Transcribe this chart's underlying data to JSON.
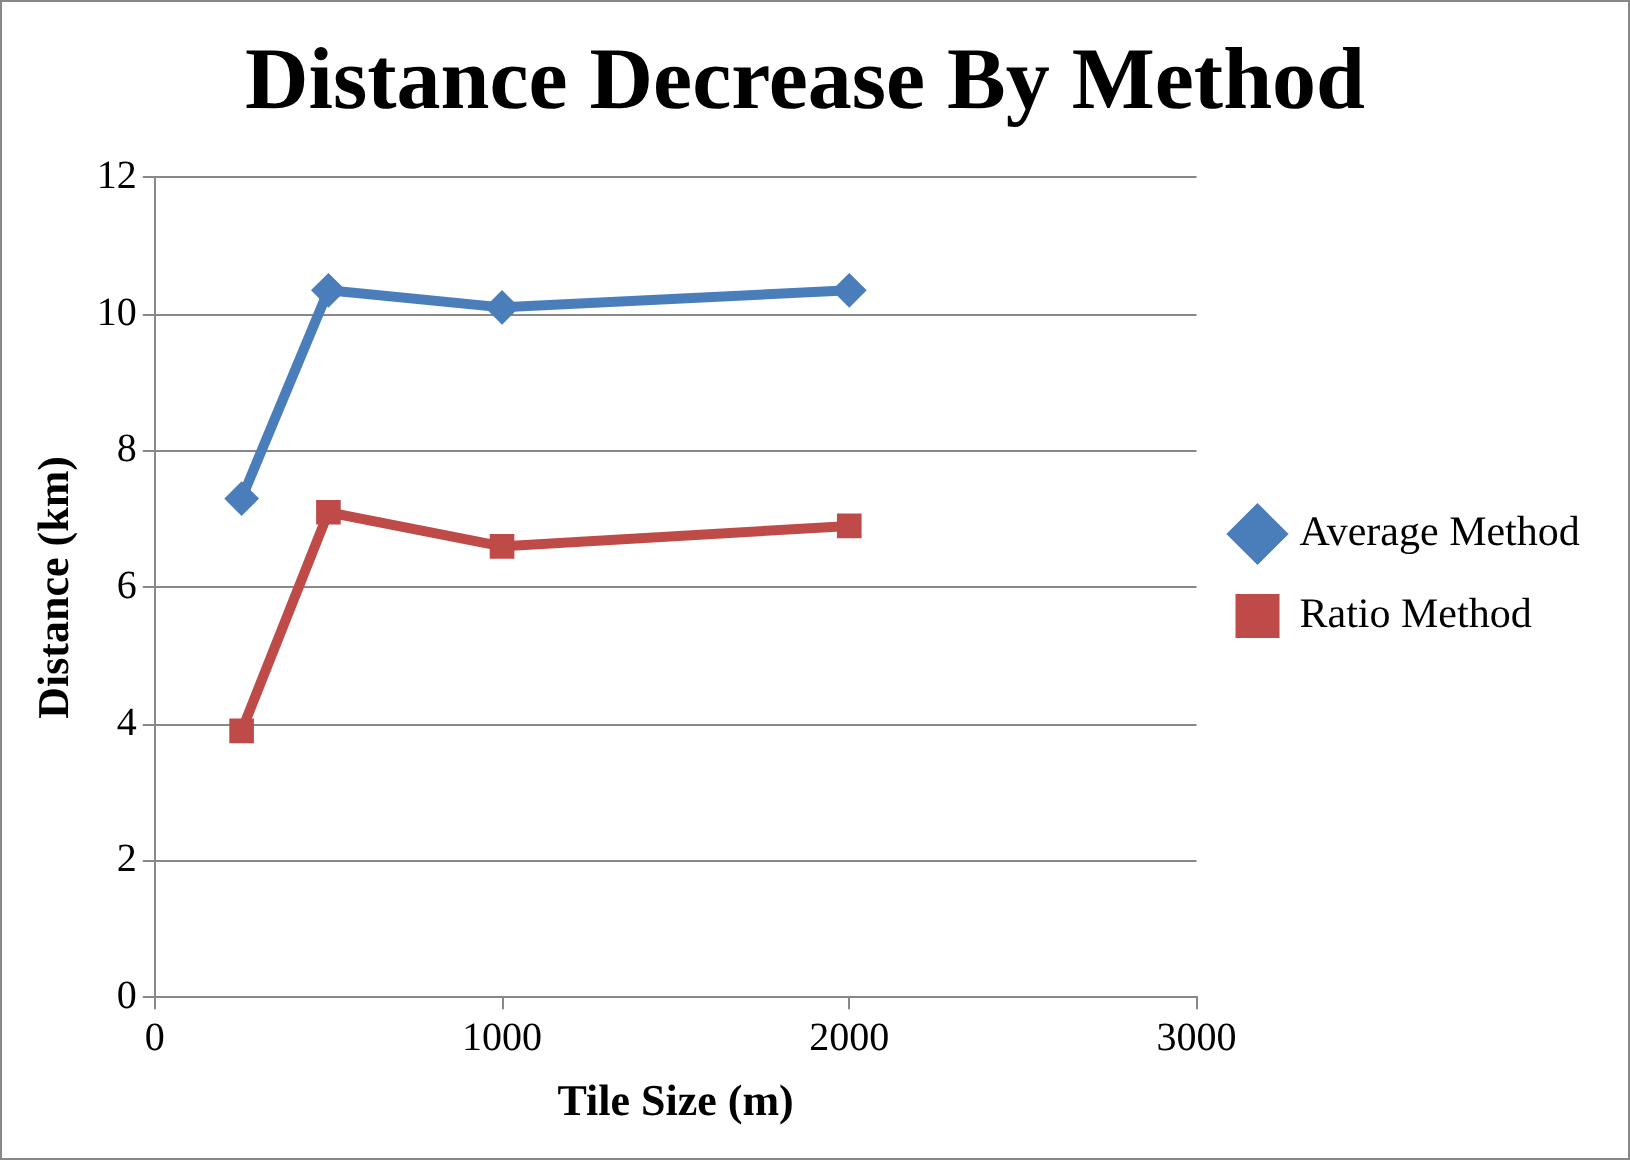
{
  "chart_data": {
    "type": "line",
    "title": "Distance Decrease By Method",
    "xlabel": "Tile Size (m)",
    "ylabel": "Distance (km)",
    "x": [
      250,
      500,
      1000,
      2000
    ],
    "series": [
      {
        "name": "Average Method",
        "color": "#4a7ebb",
        "values": [
          7.3,
          10.35,
          10.1,
          10.35
        ],
        "marker": "diamond"
      },
      {
        "name": "Ratio Method",
        "color": "#be4b48",
        "values": [
          3.9,
          7.1,
          6.6,
          6.9
        ],
        "marker": "square"
      }
    ],
    "xlim": [
      0,
      3000
    ],
    "xticks": [
      0,
      1000,
      2000,
      3000
    ],
    "ylim": [
      0,
      12
    ],
    "yticks": [
      0,
      2,
      4,
      6,
      8,
      10,
      12
    ],
    "grid": "y",
    "legend": "right",
    "line_style": "solid"
  }
}
